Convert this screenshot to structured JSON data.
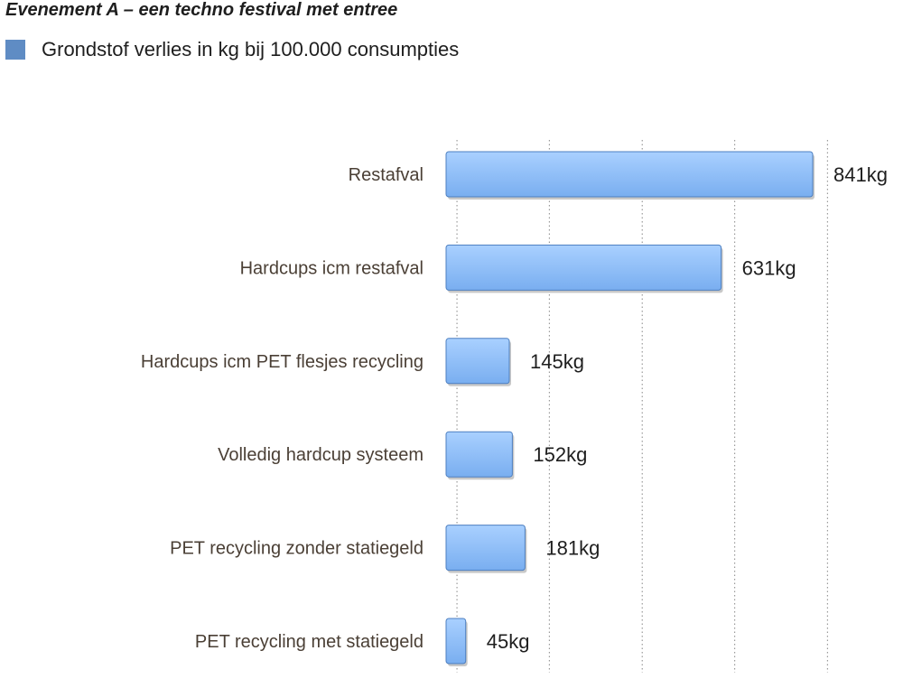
{
  "title": "Evenement A – een techno festival met entree",
  "legend": {
    "label": "Grondstof verlies in kg bij 100.000 consumpties",
    "color": "#5f8cc4"
  },
  "colors": {
    "bar_top": "#a9d0ff",
    "bar_bottom": "#79aef0",
    "bar_edge": "#4d7fc0",
    "grid": "#9a9a9a"
  },
  "chart_data": {
    "type": "bar",
    "orientation": "horizontal",
    "title": "Evenement A – een techno festival met entree",
    "categories": [
      "Restafval",
      "Hardcups icm restafval",
      "Hardcups icm PET flesjes recycling",
      "Volledig hardcup systeem",
      "PET recycling zonder statiegeld",
      "PET recycling met statiegeld"
    ],
    "series": [
      {
        "name": "Grondstof verlies in kg bij 100.000 consumpties",
        "values": [
          841,
          631,
          145,
          152,
          181,
          45
        ],
        "value_labels": [
          "841kg",
          "631kg",
          "145kg",
          "152kg",
          "181kg",
          "45kg"
        ]
      }
    ],
    "xlim": [
      0,
      1000
    ],
    "grid": "vertical dotted",
    "legend_position": "top-left"
  }
}
